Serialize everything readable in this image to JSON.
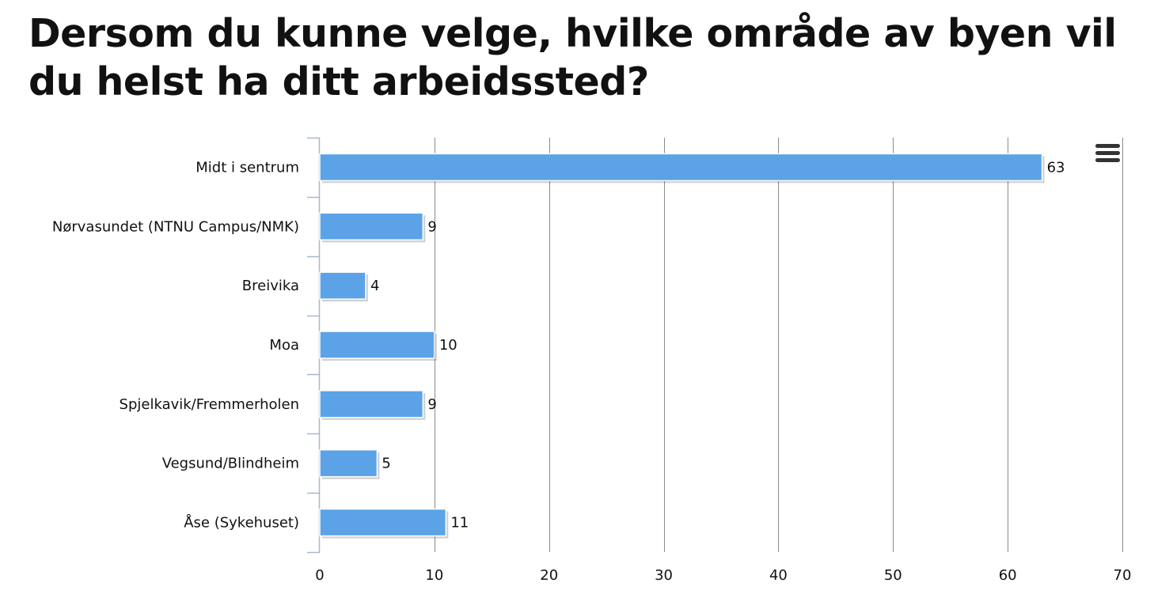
{
  "title": "Dersom du kunne velge, hvilke område av byen vil du helst ha ditt arbeidssted?",
  "menu_icon": "hamburger-menu-icon",
  "colors": {
    "bar": "#5ba3e6",
    "bar_border": "#ffffff",
    "grid": "#8a8a8a",
    "axis": "#a9b7c9"
  },
  "chart_data": {
    "type": "bar",
    "orientation": "horizontal",
    "title": "Dersom du kunne velge, hvilke område av byen vil du helst ha ditt arbeidssted?",
    "categories": [
      "Midt i sentrum",
      "Nørvasundet (NTNU Campus/NMK)",
      "Breivika",
      "Moa",
      "Spjelkavik/Fremmerholen",
      "Vegsund/Blindheim",
      "Åse (Sykehuset)"
    ],
    "values": [
      63,
      9,
      4,
      10,
      9,
      5,
      11
    ],
    "xlim": [
      0,
      70
    ],
    "ticks": [
      0,
      10,
      20,
      30,
      40,
      50,
      60,
      70
    ],
    "grid": true,
    "legend": "none",
    "data_labels": true
  }
}
